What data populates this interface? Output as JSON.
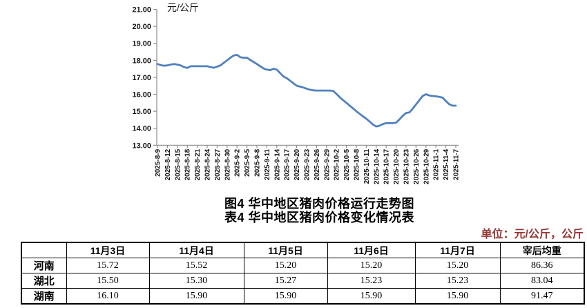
{
  "titles": {
    "figure": "图4 华中地区猪肉价格运行走势图",
    "table": "表4 华中地区猪肉价格变化情况表"
  },
  "unit_note": "单位：元/公斤，公斤",
  "colors": {
    "line": "#4F81BD",
    "unit_note": "#963634",
    "axis": "#8e8e8e",
    "text": "#000000"
  },
  "chart_data": {
    "type": "line",
    "title": "图4 华中地区猪肉价格运行走势图",
    "unit_label": "元/公斤",
    "xlabel": "",
    "ylabel": "元/公斤",
    "ylim": [
      13,
      21
    ],
    "y_ticks": [
      21,
      20,
      19,
      18,
      17,
      16,
      15,
      14,
      13
    ],
    "grid": false,
    "legend": "none",
    "points_per_tick": 3,
    "x_tick_labels": [
      "2025-8-9",
      "2025-8-12",
      "2025-8-15",
      "2025-8-18",
      "2025-8-21",
      "2025-8-24",
      "2025-8-27",
      "2025-8-30",
      "2025-9-2",
      "2025-9-5",
      "2025-9-8",
      "2025-9-11",
      "2025-9-14",
      "2025-9-17",
      "2025-9-20",
      "2025-9-23",
      "2025-9-26",
      "2025-9-29",
      "2025-10-2",
      "2025-10-5",
      "2025-10-8",
      "2025-10-11",
      "2025-10-14",
      "2025-10-17",
      "2025-10-20",
      "2025-10-23",
      "2025-10-26",
      "2025-10-29",
      "2025-11-1",
      "2025-11-4",
      "2025-11-7"
    ],
    "series": [
      {
        "name": "华中地区猪肉价格",
        "color": "#4F81BD",
        "values": [
          17.78,
          17.72,
          17.68,
          17.7,
          17.75,
          17.78,
          17.75,
          17.7,
          17.6,
          17.55,
          17.65,
          17.65,
          17.65,
          17.65,
          17.65,
          17.65,
          17.6,
          17.56,
          17.62,
          17.7,
          17.85,
          18.0,
          18.15,
          18.28,
          18.32,
          18.18,
          18.15,
          18.15,
          18.02,
          17.9,
          17.78,
          17.65,
          17.52,
          17.45,
          17.42,
          17.5,
          17.45,
          17.25,
          17.05,
          16.95,
          16.8,
          16.65,
          16.5,
          16.45,
          16.4,
          16.33,
          16.27,
          16.23,
          16.22,
          16.22,
          16.22,
          16.22,
          16.22,
          16.2,
          16.02,
          15.82,
          15.65,
          15.5,
          15.33,
          15.17,
          15.0,
          14.85,
          14.7,
          14.56,
          14.4,
          14.22,
          14.1,
          14.15,
          14.25,
          14.3,
          14.3,
          14.3,
          14.33,
          14.52,
          14.73,
          14.9,
          14.93,
          15.15,
          15.4,
          15.65,
          15.9,
          16.0,
          15.93,
          15.9,
          15.88,
          15.85,
          15.8,
          15.6,
          15.42,
          15.33,
          15.33
        ]
      }
    ]
  },
  "table": {
    "columns": [
      "",
      "11月3日",
      "11月4日",
      "11月5日",
      "11月6日",
      "11月7日",
      "宰后均重"
    ],
    "rows": [
      {
        "region": "河南",
        "values": [
          "15.72",
          "15.52",
          "15.20",
          "15.20",
          "15.20",
          "86.36"
        ]
      },
      {
        "region": "湖北",
        "values": [
          "15.50",
          "15.30",
          "15.27",
          "15.23",
          "15.23",
          "83.04"
        ]
      },
      {
        "region": "湖南",
        "values": [
          "16.10",
          "15.90",
          "15.90",
          "15.90",
          "15.90",
          "91.47"
        ]
      }
    ]
  }
}
